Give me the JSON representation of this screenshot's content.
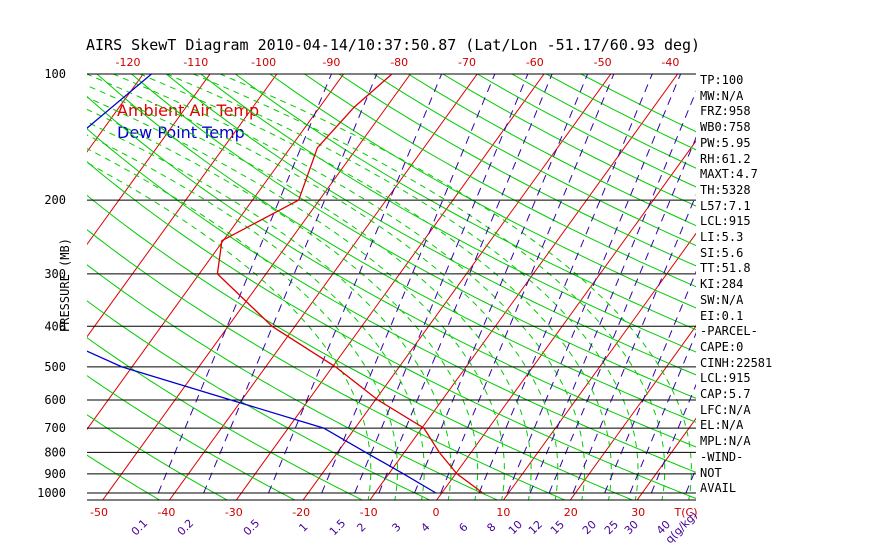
{
  "chart_data": {
    "type": "line",
    "title": "AIRS SkewT Diagram 2010-04-14/10:37:50.87 (Lat/Lon -51.17/60.93 deg)",
    "ylabel": "PRESSURE (MB)",
    "pressure_ticks": [
      "100",
      "200",
      "300",
      "400",
      "500",
      "600",
      "700",
      "800",
      "900",
      "1000"
    ],
    "pressure_values": [
      100,
      200,
      300,
      400,
      500,
      600,
      700,
      800,
      900,
      1000
    ],
    "top_temp_ticks": [
      "-120",
      "-110",
      "-100",
      "-90",
      "-80",
      "-70",
      "-60",
      "-50",
      "-40"
    ],
    "bottom_temp_ticks": [
      "-50",
      "-40",
      "-30",
      "-20",
      "-10",
      "0",
      "10",
      "20",
      "30"
    ],
    "bottom_temp_unit": "T(C)",
    "mixing_ratio_ticks": [
      "0.1",
      "0.2",
      "0.5",
      "1",
      "1.5",
      "2",
      "3",
      "4",
      "6",
      "8",
      "10",
      "12",
      "15",
      "20",
      "25",
      "30",
      "40"
    ],
    "mixing_ratio_unit": "q(g/kg)",
    "ylim": [
      1000,
      100
    ],
    "series": [
      {
        "name": "Ambient Air Temp",
        "color": "#dd0000",
        "points": [
          [
            100,
            -53
          ],
          [
            120,
            -55
          ],
          [
            150,
            -56
          ],
          [
            200,
            -53
          ],
          [
            250,
            -60
          ],
          [
            300,
            -57
          ],
          [
            400,
            -43
          ],
          [
            500,
            -29
          ],
          [
            600,
            -19
          ],
          [
            700,
            -9
          ],
          [
            800,
            -4
          ],
          [
            900,
            1
          ],
          [
            1000,
            7
          ]
        ]
      },
      {
        "name": "Dew Point Temp",
        "color": "#0000cc",
        "points": [
          [
            100,
            -89
          ],
          [
            150,
            -94
          ],
          [
            200,
            -96
          ],
          [
            250,
            -96
          ],
          [
            300,
            -92
          ],
          [
            400,
            -79
          ],
          [
            500,
            -61
          ],
          [
            600,
            -41
          ],
          [
            700,
            -24
          ],
          [
            800,
            -15
          ],
          [
            900,
            -7
          ],
          [
            1000,
            0
          ]
        ]
      }
    ],
    "indices": [
      "TP:100",
      "MW:N/A",
      "FRZ:958",
      "WB0:758",
      "PW:5.95",
      "RH:61.2",
      "MAXT:4.7",
      "TH:5328",
      "L57:7.1",
      "LCL:915",
      "LI:5.3",
      "SI:5.6",
      "TT:51.8",
      "KI:284",
      "SW:N/A",
      "EI:0.1",
      "-PARCEL-",
      "CAPE:0",
      "CINH:22581",
      "LCL:915",
      "CAP:5.7",
      "LFC:N/A",
      "EL:N/A",
      "MPL:N/A",
      "-WIND-",
      "NOT",
      "AVAIL"
    ],
    "colors": {
      "isotherm": "#dd0000",
      "dry_adiabat": "#00cc00",
      "moist_adiabat": "#00cc00",
      "mixing_ratio": "#3300aa",
      "isobar": "#000000",
      "tick_labels": "#cc0000",
      "mixing_labels": "#440099"
    }
  }
}
